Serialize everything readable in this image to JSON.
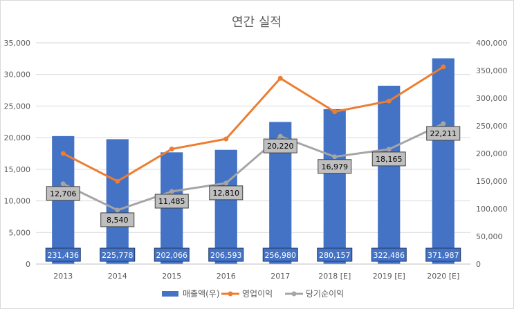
{
  "chart_data": {
    "type": "bar",
    "title": "연간 실적",
    "categories": [
      "2013",
      "2014",
      "2015",
      "2016",
      "2017",
      "2018 [E]",
      "2019 [E]",
      "2020 [E]"
    ],
    "y_left": {
      "min": 0,
      "max": 35000,
      "step": 5000,
      "ticks": [
        "0",
        "5,000",
        "10,000",
        "15,000",
        "20,000",
        "25,000",
        "30,000",
        "35,000"
      ]
    },
    "y_right": {
      "min": 0,
      "max": 400000,
      "step": 50000,
      "ticks": [
        "0",
        "50,000",
        "100,000",
        "150,000",
        "200,000",
        "250,000",
        "300,000",
        "350,000",
        "400,000"
      ]
    },
    "series": [
      {
        "name": "매출액(우)",
        "type": "bar",
        "axis": "right",
        "color": "#4472c4",
        "values": [
          231436,
          225778,
          202066,
          206593,
          256980,
          280157,
          322486,
          371987
        ],
        "labels": [
          "231,436",
          "225,778",
          "202,066",
          "206,593",
          "256,980",
          "280,157",
          "322,486",
          "371,987"
        ]
      },
      {
        "name": "영업이익",
        "type": "line",
        "axis": "left",
        "color": "#ed7d31",
        "values": [
          17500,
          13100,
          18200,
          19800,
          29400,
          24100,
          25800,
          31200
        ]
      },
      {
        "name": "당기순이익",
        "type": "line",
        "axis": "left",
        "color": "#a5a5a5",
        "values": [
          12706,
          8540,
          11485,
          12810,
          20220,
          16979,
          18165,
          22211
        ],
        "labels": [
          "12,706",
          "8,540",
          "11,485",
          "12,810",
          "20,220",
          "16,979",
          "18,165",
          "22,211"
        ]
      }
    ],
    "grid": true,
    "legend_position": "bottom"
  }
}
